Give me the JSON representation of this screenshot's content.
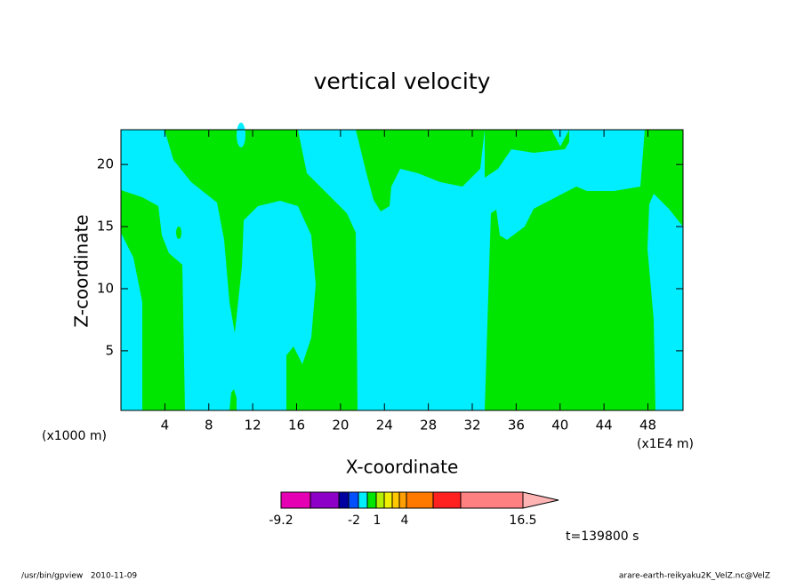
{
  "chart_data": {
    "type": "contour",
    "title": "vertical velocity",
    "xlabel": "X-coordinate",
    "ylabel": "Z-coordinate",
    "x_unit_label": "(x1000 m)",
    "x_scale_label": "(x1E4 m)",
    "xlim": [
      0,
      51.2
    ],
    "ylim": [
      0.2,
      22.8
    ],
    "xticks": [
      4,
      8,
      12,
      16,
      20,
      24,
      28,
      32,
      36,
      40,
      44,
      48
    ],
    "yticks": [
      5,
      10,
      15,
      20
    ],
    "colorbar": {
      "colors": [
        "#e600b4",
        "#8c00c8",
        "#0000a0",
        "#0050ff",
        "#00eeff",
        "#00e600",
        "#b4f000",
        "#f0f000",
        "#ffc800",
        "#ffa000",
        "#ff7800",
        "#ff2020",
        "#ff8080",
        "#ffb4b4"
      ],
      "ticks": [
        -9.2,
        -2,
        1,
        4,
        16.5
      ]
    },
    "time_label": "t=139800 s",
    "footer_left": "/usr/bin/gpview   2010-11-09",
    "footer_right": "arare-earth-reikyaku2K_VelZ.nc@VelZ"
  }
}
